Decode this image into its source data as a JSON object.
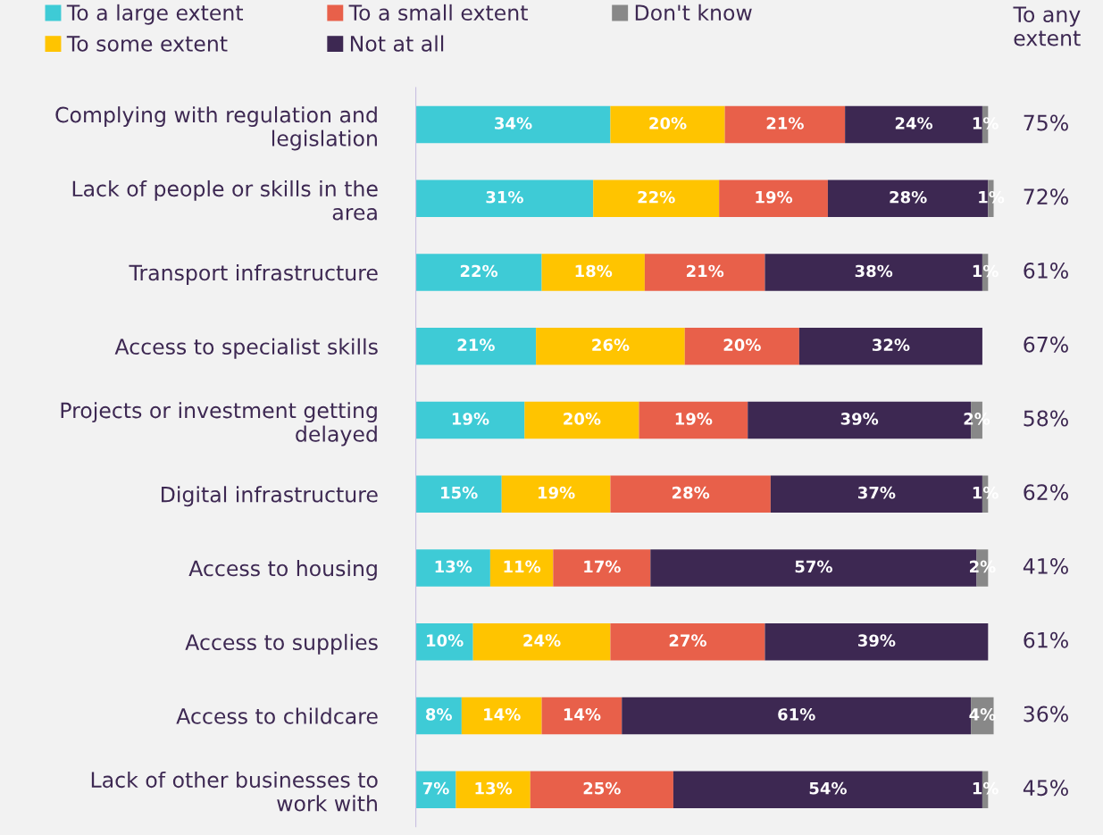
{
  "chart_data": {
    "type": "bar",
    "orientation": "horizontal",
    "stacked": true,
    "legend": "top",
    "grid": false,
    "categories": [
      "Complying with regulation and\nlegislation",
      "Lack of people or skills in the\narea",
      "Transport infrastructure",
      "Access to specialist skills",
      "Projects or investment getting\ndelayed",
      "Digital infrastructure",
      "Access to housing",
      "Access to supplies",
      "Access to childcare",
      "Lack of other businesses to\nwork with"
    ],
    "series": [
      {
        "name": "To a large extent",
        "color": "#3ecbd6",
        "values": [
          34,
          31,
          22,
          21,
          19,
          15,
          13,
          10,
          8,
          7
        ],
        "value_labels": [
          "34%",
          "31%",
          "22%",
          "21%",
          "19%",
          "15%",
          "13%",
          "10%",
          "8%",
          "7%"
        ]
      },
      {
        "name": "To some extent",
        "color": "#ffc400",
        "values": [
          20,
          22,
          18,
          26,
          20,
          19,
          11,
          24,
          14,
          13
        ],
        "value_labels": [
          "20%",
          "22%",
          "18%",
          "26%",
          "20%",
          "19%",
          "11%",
          "24%",
          "14%",
          "13%"
        ]
      },
      {
        "name": "To a small extent",
        "color": "#e8604a",
        "values": [
          21,
          19,
          21,
          20,
          19,
          28,
          17,
          27,
          14,
          25
        ],
        "value_labels": [
          "21%",
          "19%",
          "21%",
          "20%",
          "19%",
          "28%",
          "17%",
          "27%",
          "14%",
          "25%"
        ]
      },
      {
        "name": "Not at all",
        "color": "#3d2852",
        "values": [
          24,
          28,
          38,
          32,
          39,
          37,
          57,
          39,
          61,
          54
        ],
        "value_labels": [
          "24%",
          "28%",
          "38%",
          "32%",
          "39%",
          "37%",
          "57%",
          "39%",
          "61%",
          "54%"
        ]
      },
      {
        "name": "Don't know",
        "color": "#888888",
        "values": [
          1,
          1,
          1,
          null,
          2,
          1,
          2,
          null,
          4,
          1
        ],
        "value_labels": [
          "1%",
          "1%",
          "1%",
          null,
          "2%",
          "1%",
          "2%",
          null,
          "4%",
          "1%"
        ]
      }
    ],
    "annotations": [
      "To any\nextent",
      "75%",
      "72%",
      "61%",
      "67%",
      "58%",
      "62%",
      "41%",
      "61%",
      "36%",
      "45%"
    ]
  }
}
